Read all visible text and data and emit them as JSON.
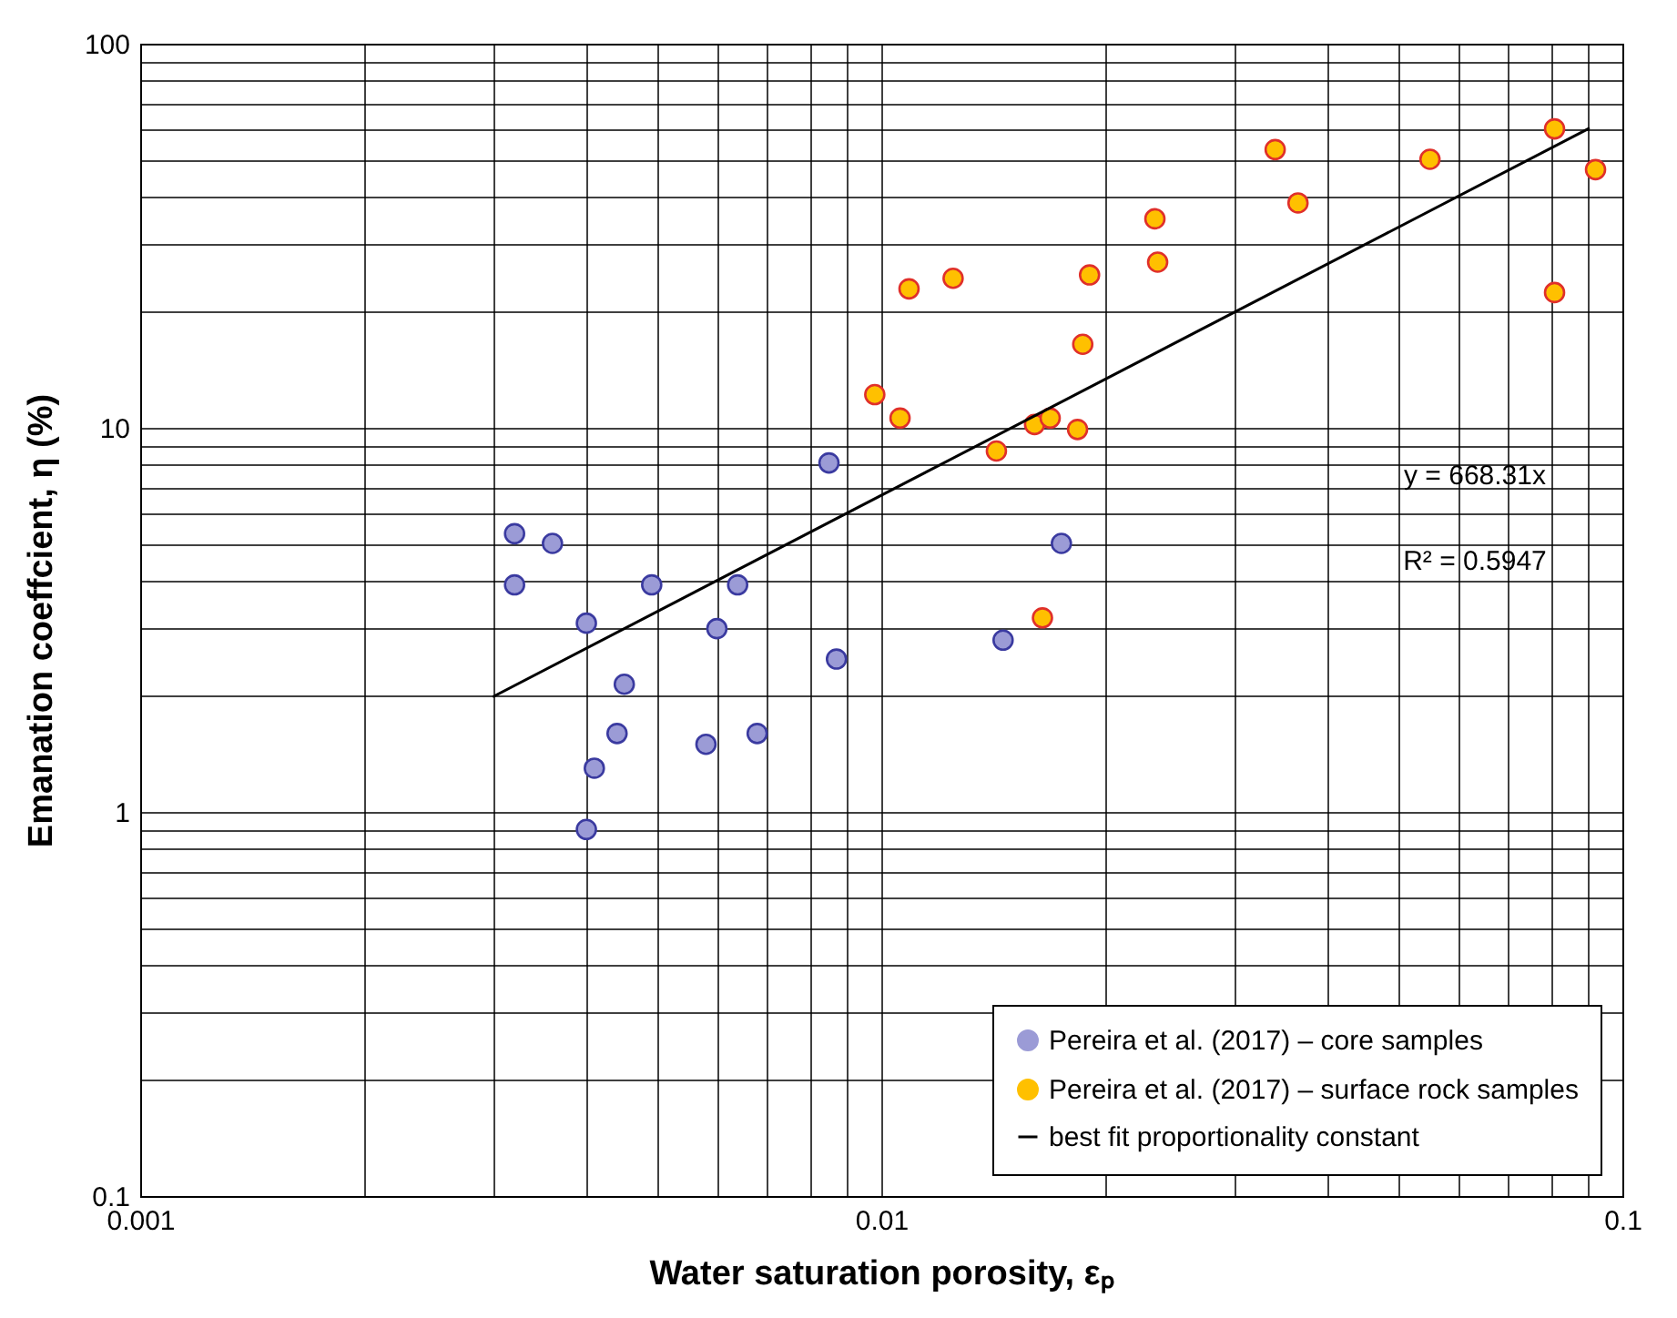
{
  "chart_data": {
    "type": "scatter",
    "xlabel": "Water saturation porosity, εₚ",
    "ylabel": "Emanation coeffcient, η (%)",
    "log": "xy",
    "grid": true,
    "legend": "bottom right",
    "xlim": [
      0.001,
      0.1
    ],
    "ylim": [
      0.1,
      100
    ],
    "xticks": [
      0.001,
      {
        "value": 0.002,
        "label": null
      },
      {
        "value": 0.003,
        "label": null
      },
      {
        "value": 0.004,
        "label": null
      },
      {
        "value": 0.005,
        "label": null
      },
      {
        "value": 0.006,
        "label": null
      },
      {
        "value": 0.007,
        "label": null
      },
      {
        "value": 0.008,
        "label": null
      },
      {
        "value": 0.009,
        "label": null
      },
      0.01,
      {
        "value": 0.02,
        "label": null
      },
      {
        "value": 0.03,
        "label": null
      },
      {
        "value": 0.04,
        "label": null
      },
      {
        "value": 0.05,
        "label": null
      },
      {
        "value": 0.06,
        "label": null
      },
      {
        "value": 0.07,
        "label": null
      },
      {
        "value": 0.08,
        "label": null
      },
      {
        "value": 0.09,
        "label": null
      },
      0.1
    ],
    "yticks": [
      0.1,
      {
        "value": 0.2,
        "label": null
      },
      {
        "value": 0.3,
        "label": null
      },
      {
        "value": 0.4,
        "label": null
      },
      {
        "value": 0.5,
        "label": null
      },
      {
        "value": 0.6,
        "label": null
      },
      {
        "value": 0.7,
        "label": null
      },
      {
        "value": 0.8,
        "label": null
      },
      {
        "value": 0.9,
        "label": null
      },
      1,
      {
        "value": 2,
        "label": null
      },
      {
        "value": 3,
        "label": null
      },
      {
        "value": 4,
        "label": null
      },
      {
        "value": 5,
        "label": null
      },
      {
        "value": 6,
        "label": null
      },
      {
        "value": 7,
        "label": null
      },
      {
        "value": 8,
        "label": null
      },
      {
        "value": 9,
        "label": null
      },
      10,
      {
        "value": 20,
        "label": null
      },
      {
        "value": 30,
        "label": null
      },
      {
        "value": 40,
        "label": null
      },
      {
        "value": 50,
        "label": null
      },
      {
        "value": 60,
        "label": null
      },
      {
        "value": 70,
        "label": null
      },
      {
        "value": 80,
        "label": null
      },
      {
        "value": 90,
        "label": null
      },
      100
    ],
    "series": [
      {
        "name": "Pereira et al. (2017) – core samples",
        "color": "#9b9bd6",
        "marker": "circle",
        "x": [
          0.0032,
          0.0032,
          0.0036,
          0.004,
          0.0049,
          0.0045,
          0.0044,
          0.0041,
          0.004,
          0.0058,
          0.006,
          0.0064,
          0.0068,
          0.0085,
          0.0087,
          0.0146,
          0.0175
        ],
        "values": [
          5.3,
          3.9,
          5.0,
          3.1,
          3.9,
          2.15,
          1.6,
          1.3,
          0.9,
          1.5,
          3.0,
          3.9,
          1.6,
          8.1,
          2.5,
          2.8,
          5.0
        ]
      },
      {
        "name": "Pereira et al. (2017) – surface rock samples",
        "color": "#ffc000",
        "marker": "circle",
        "x": [
          0.0098,
          0.0106,
          0.0109,
          0.0125,
          0.0143,
          0.0161,
          0.0169,
          0.0184,
          0.0187,
          0.0191,
          0.0165,
          0.0234,
          0.0236,
          0.034,
          0.0365,
          0.055,
          0.081,
          0.081,
          0.092
        ],
        "values": [
          12.2,
          10.6,
          23,
          24.5,
          8.7,
          10.2,
          10.6,
          9.9,
          16.5,
          25,
          3.2,
          35,
          27,
          53,
          38.5,
          50,
          60,
          22.5,
          47
        ]
      },
      {
        "name": "best fit proportionality constant",
        "type": "line",
        "color": "#000000",
        "marker": "none",
        "x": [
          0.003,
          0.09
        ],
        "values": [
          2.0,
          60.1
        ]
      }
    ],
    "annotations": [
      "y = 668.31x",
      "R² = 0.5947"
    ]
  }
}
